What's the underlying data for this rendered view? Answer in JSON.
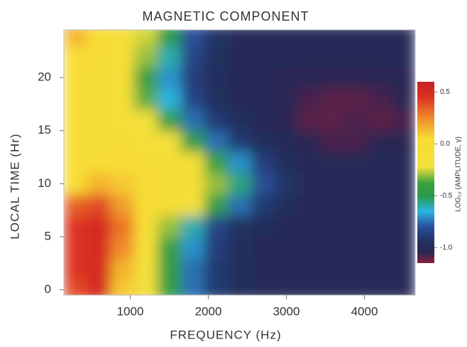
{
  "chart_data": {
    "type": "heatmap",
    "title": "MAGNETIC COMPONENT",
    "x_label": "FREQUENCY (Hz)",
    "y_label": "LOCAL TIME (Hr)",
    "colorbar_label": "LOG₁₀ (AMPLITUDE, γ)",
    "x": [
      300,
      600,
      900,
      1200,
      1500,
      1800,
      2100,
      2400,
      2700,
      3000,
      3300,
      3600,
      3900,
      4200,
      4500
    ],
    "y": [
      0,
      2,
      4,
      6,
      8,
      10,
      12,
      14,
      16,
      18,
      20,
      22,
      24
    ],
    "z": [
      [
        0.4,
        0.5,
        0.1,
        -0.2,
        -0.45,
        -0.75,
        -0.9,
        -0.97,
        -1.0,
        -1.0,
        -1.0,
        -1.0,
        -1.0,
        -1.0,
        -1.0
      ],
      [
        0.45,
        0.5,
        0.15,
        -0.2,
        -0.45,
        -0.75,
        -0.9,
        -0.97,
        -1.0,
        -1.0,
        -1.0,
        -1.0,
        -1.0,
        -1.0,
        -1.0
      ],
      [
        0.45,
        0.5,
        0.25,
        -0.15,
        -0.4,
        -0.7,
        -0.88,
        -0.96,
        -1.0,
        -1.0,
        -1.0,
        -1.0,
        -1.0,
        -1.0,
        -1.0
      ],
      [
        0.45,
        0.5,
        0.3,
        -0.05,
        -0.3,
        -0.6,
        -0.85,
        -0.95,
        -0.98,
        -1.0,
        -1.0,
        -1.0,
        -1.0,
        -1.0,
        -1.0
      ],
      [
        0.35,
        0.4,
        0.2,
        0.0,
        -0.05,
        -0.2,
        -0.45,
        -0.75,
        -0.9,
        -0.97,
        -1.0,
        -1.0,
        -1.0,
        -1.0,
        -1.0
      ],
      [
        0.05,
        0.15,
        0.1,
        0.05,
        0.0,
        -0.05,
        -0.3,
        -0.55,
        -0.8,
        -0.93,
        -1.0,
        -1.0,
        -1.0,
        -1.0,
        -1.0
      ],
      [
        0.0,
        0.0,
        0.05,
        0.0,
        -0.05,
        -0.15,
        -0.4,
        -0.7,
        -0.88,
        -0.96,
        -1.0,
        -1.0,
        -1.0,
        -1.0,
        -1.0
      ],
      [
        0.0,
        -0.05,
        -0.05,
        -0.1,
        -0.2,
        -0.45,
        -0.75,
        -0.9,
        -0.97,
        -1.0,
        -1.05,
        -1.08,
        -1.08,
        -1.05,
        -1.05
      ],
      [
        0.0,
        -0.05,
        -0.1,
        -0.2,
        -0.45,
        -0.75,
        -0.9,
        -0.97,
        -1.0,
        -1.05,
        -1.1,
        -1.1,
        -1.08,
        -1.1,
        -1.08
      ],
      [
        0.0,
        -0.05,
        -0.15,
        -0.35,
        -0.65,
        -0.85,
        -0.95,
        -1.0,
        -1.0,
        -1.05,
        -1.08,
        -1.1,
        -1.1,
        -1.08,
        -1.05
      ],
      [
        0.0,
        -0.05,
        -0.15,
        -0.4,
        -0.7,
        -0.88,
        -0.96,
        -1.0,
        -1.0,
        -1.03,
        -1.05,
        -1.05,
        -1.05,
        -1.05,
        -1.03
      ],
      [
        0.05,
        0.0,
        -0.1,
        -0.3,
        -0.6,
        -0.85,
        -0.95,
        -1.0,
        -1.0,
        -1.0,
        -1.0,
        -1.0,
        -1.0,
        -1.0,
        -1.0
      ],
      [
        0.15,
        0.05,
        -0.1,
        -0.25,
        -0.5,
        -0.8,
        -0.93,
        -1.0,
        -1.0,
        -1.0,
        -1.0,
        -1.0,
        -1.0,
        -1.0,
        -1.0
      ]
    ],
    "xlim": [
      150,
      4650
    ],
    "xticks": [
      1000,
      2000,
      3000,
      4000
    ],
    "ylim": [
      -0.5,
      24.5
    ],
    "yticks": [
      0,
      5,
      10,
      15,
      20
    ],
    "clim": [
      -1.15,
      0.6
    ],
    "colorbar_ticks": [
      {
        "value": 0.5,
        "label": "0.5"
      },
      {
        "value": 0,
        "label": "0.0"
      },
      {
        "value": -0.5,
        "label": "-0.5"
      },
      {
        "value": -1,
        "label": "-1.0"
      }
    ],
    "colorscale": [
      [
        -1.15,
        "#8a2040"
      ],
      [
        -1.05,
        "#2c2652"
      ],
      [
        -0.95,
        "#21305e"
      ],
      [
        -0.8,
        "#2a4f9a"
      ],
      [
        -0.65,
        "#2ab5e0"
      ],
      [
        -0.5,
        "#2b9a48"
      ],
      [
        -0.38,
        "#3aa040"
      ],
      [
        -0.22,
        "#f3e03a"
      ],
      [
        0.05,
        "#f7dc34"
      ],
      [
        0.25,
        "#f08a2a"
      ],
      [
        0.45,
        "#dc3323"
      ],
      [
        0.6,
        "#c81e24"
      ]
    ]
  }
}
